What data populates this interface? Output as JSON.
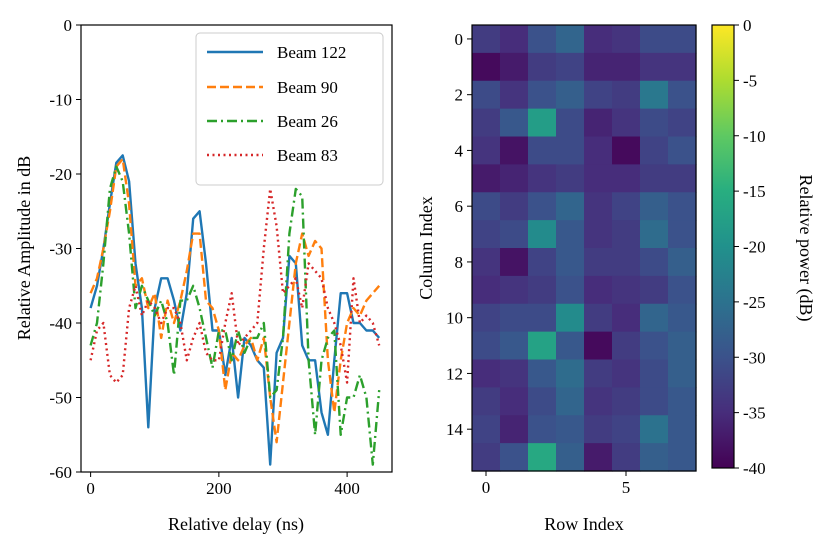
{
  "chart_data": [
    {
      "type": "line",
      "xlabel": "Relative delay (ns)",
      "ylabel": "Relative Amplitude in dB",
      "xlim": [
        -15,
        470
      ],
      "ylim": [
        -60,
        0
      ],
      "xticks": [
        0,
        200,
        400
      ],
      "yticks": [
        0,
        -10,
        -20,
        -30,
        -40,
        -50,
        -60
      ],
      "legend": "top-right",
      "series": [
        {
          "name": "Beam 122",
          "color": "#1f77b4",
          "style": "solid",
          "x": [
            0,
            10,
            20,
            30,
            40,
            50,
            60,
            70,
            80,
            90,
            100,
            110,
            120,
            130,
            140,
            150,
            160,
            170,
            180,
            190,
            200,
            210,
            220,
            230,
            240,
            250,
            260,
            270,
            280,
            290,
            300,
            310,
            320,
            330,
            340,
            350,
            360,
            370,
            380,
            390,
            400,
            410,
            420,
            430,
            440,
            450
          ],
          "y": [
            -38,
            -35,
            -30,
            -24,
            -18.5,
            -17.5,
            -21,
            -32,
            -38,
            -54,
            -38,
            -34,
            -34,
            -37,
            -41,
            -36,
            -26,
            -25,
            -32,
            -41,
            -41,
            -47,
            -42,
            -50,
            -42,
            -43,
            -45,
            -46,
            -59,
            -44,
            -42,
            -31,
            -32,
            -43,
            -45,
            -45,
            -52,
            -55,
            -45,
            -36,
            -36,
            -40,
            -40,
            -41,
            -41,
            -42
          ]
        },
        {
          "name": "Beam 90",
          "color": "#ff7f0e",
          "style": "dashed",
          "x": [
            0,
            10,
            20,
            30,
            40,
            50,
            60,
            70,
            80,
            90,
            100,
            110,
            120,
            130,
            140,
            150,
            160,
            170,
            180,
            190,
            200,
            210,
            220,
            230,
            240,
            250,
            260,
            270,
            280,
            290,
            300,
            310,
            320,
            330,
            340,
            350,
            360,
            370,
            380,
            390,
            400,
            410,
            420,
            430,
            440,
            450
          ],
          "y": [
            -36,
            -34,
            -30,
            -25,
            -19,
            -18,
            -24,
            -35,
            -34,
            -38,
            -36,
            -42,
            -37,
            -40,
            -37,
            -33,
            -28,
            -28,
            -37,
            -38,
            -41,
            -49,
            -44,
            -45,
            -43,
            -42,
            -45,
            -42,
            -50,
            -56,
            -48,
            -40,
            -32,
            -28,
            -31,
            -29,
            -30,
            -45,
            -52,
            -45,
            -40,
            -38,
            -39,
            -37,
            -36,
            -35
          ]
        },
        {
          "name": "Beam 26",
          "color": "#2ca02c",
          "style": "dashdot",
          "x": [
            0,
            10,
            20,
            30,
            40,
            50,
            60,
            70,
            80,
            90,
            100,
            110,
            120,
            130,
            140,
            150,
            160,
            170,
            180,
            190,
            200,
            210,
            220,
            230,
            240,
            250,
            260,
            270,
            280,
            290,
            300,
            310,
            320,
            330,
            340,
            350,
            360,
            370,
            380,
            390,
            400,
            410,
            420,
            430,
            440,
            450
          ],
          "y": [
            -43,
            -40,
            -32,
            -22,
            -19,
            -21,
            -28,
            -38,
            -35,
            -37,
            -39,
            -37,
            -40,
            -47,
            -37,
            -37,
            -35,
            -38,
            -42,
            -46,
            -41,
            -41,
            -45,
            -41,
            -44,
            -42,
            -42,
            -40,
            -50,
            -49,
            -42,
            -28,
            -22,
            -23,
            -45,
            -55,
            -45,
            -42,
            -41,
            -55,
            -50,
            -50,
            -47,
            -50,
            -59,
            -49
          ]
        },
        {
          "name": "Beam 83",
          "color": "#d62728",
          "style": "dotted",
          "x": [
            0,
            10,
            20,
            30,
            40,
            50,
            60,
            70,
            80,
            90,
            100,
            110,
            120,
            130,
            140,
            150,
            160,
            170,
            180,
            190,
            200,
            210,
            220,
            230,
            240,
            250,
            260,
            270,
            280,
            290,
            300,
            310,
            320,
            330,
            340,
            350,
            360,
            370,
            380,
            390,
            400,
            410,
            420,
            430,
            440,
            450
          ],
          "y": [
            -45,
            -41,
            -40,
            -47,
            -48,
            -47,
            -38,
            -35,
            -39,
            -37,
            -38,
            -40,
            -38,
            -38,
            -40,
            -45,
            -42,
            -40,
            -44,
            -45,
            -45,
            -40,
            -36,
            -43,
            -42,
            -41,
            -40,
            -30,
            -22,
            -27,
            -36,
            -35,
            -34,
            -38,
            -32,
            -33,
            -34,
            -38,
            -40,
            -43,
            -48,
            -34,
            -40,
            -39,
            -40,
            -43
          ]
        }
      ]
    },
    {
      "type": "heatmap",
      "xlabel": "Row Index",
      "ylabel": "Column Index",
      "xticks": [
        0,
        5
      ],
      "yticks": [
        0,
        2,
        4,
        6,
        8,
        10,
        12,
        14
      ],
      "colorbar_label": "Relative power (dB)",
      "colorbar_ticks": [
        0,
        -5,
        -10,
        -15,
        -20,
        -25,
        -30,
        -35,
        -40
      ],
      "vmin": -40,
      "vmax": 0,
      "values": [
        [
          -33,
          -35,
          -30,
          -27,
          -35,
          -34,
          -31,
          -31
        ],
        [
          -39,
          -37,
          -33,
          -32,
          -36,
          -36,
          -34,
          -34
        ],
        [
          -31,
          -34,
          -30,
          -28,
          -32,
          -33,
          -24,
          -30
        ],
        [
          -33,
          -29,
          -18,
          -31,
          -36,
          -34,
          -31,
          -32
        ],
        [
          -34,
          -38,
          -31,
          -31,
          -35,
          -39,
          -32,
          -30
        ],
        [
          -37,
          -36,
          -34,
          -33,
          -35,
          -35,
          -33,
          -33
        ],
        [
          -31,
          -33,
          -30,
          -27,
          -34,
          -32,
          -28,
          -30
        ],
        [
          -32,
          -31,
          -21,
          -29,
          -34,
          -33,
          -26,
          -30
        ],
        [
          -34,
          -38,
          -32,
          -29,
          -33,
          -33,
          -31,
          -28
        ],
        [
          -35,
          -34,
          -33,
          -30,
          -35,
          -34,
          -33,
          -30
        ],
        [
          -32,
          -31,
          -31,
          -21,
          -33,
          -35,
          -27,
          -29
        ],
        [
          -31,
          -29,
          -17,
          -29,
          -39,
          -33,
          -30,
          -28
        ],
        [
          -35,
          -34,
          -29,
          -26,
          -33,
          -34,
          -31,
          -28
        ],
        [
          -33,
          -35,
          -31,
          -27,
          -34,
          -33,
          -31,
          -29
        ],
        [
          -32,
          -36,
          -30,
          -29,
          -33,
          -32,
          -25,
          -29
        ],
        [
          -33,
          -30,
          -16,
          -28,
          -37,
          -33,
          -28,
          -29
        ]
      ]
    }
  ]
}
